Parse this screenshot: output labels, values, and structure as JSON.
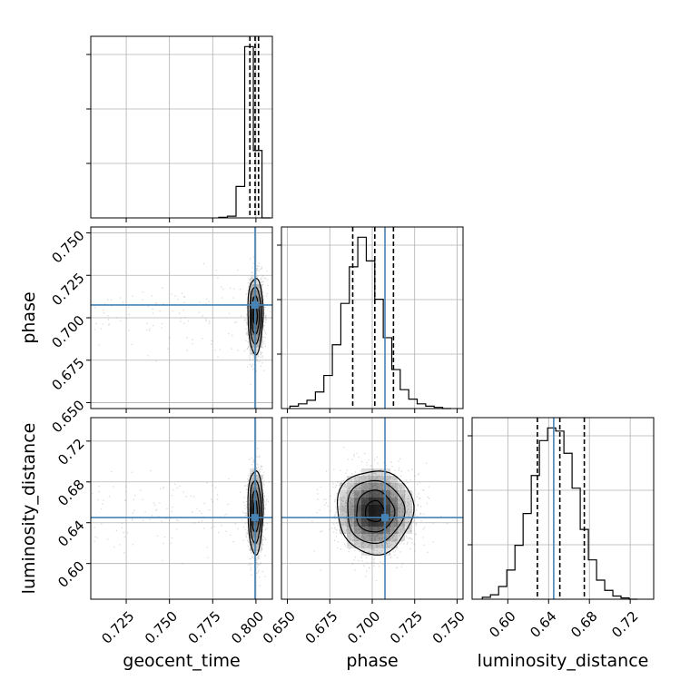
{
  "chart_data": {
    "type": "corner",
    "parameters": [
      "geocent_time",
      "phase",
      "luminosity_distance"
    ],
    "truths": {
      "geocent_time": 0.7995,
      "phase": 0.7075,
      "luminosity_distance": 0.645
    },
    "axes": {
      "geocent_time": {
        "range": [
          0.7045,
          0.8095
        ],
        "ticks": [
          0.725,
          0.75,
          0.775,
          0.8
        ],
        "tick_labels": [
          "0.725",
          "0.750",
          "0.775",
          "0.800"
        ]
      },
      "phase": {
        "range": [
          0.6465,
          0.7535
        ],
        "ticks": [
          0.65,
          0.675,
          0.7,
          0.725,
          0.75
        ],
        "tick_labels": [
          "0.650",
          "0.675",
          "0.700",
          "0.725",
          "0.750"
        ]
      },
      "luminosity_distance": {
        "range": [
          0.565,
          0.743
        ],
        "ticks": [
          0.6,
          0.64,
          0.68,
          0.72
        ],
        "tick_labels": [
          "0.60",
          "0.64",
          "0.68",
          "0.72"
        ]
      }
    },
    "histograms": {
      "geocent_time": {
        "bin_edges": [
          0.7785,
          0.7835,
          0.7885,
          0.7935,
          0.7985,
          0.8035,
          0.8085
        ],
        "counts": [
          1,
          3,
          55,
          300,
          118,
          0
        ],
        "quantiles": [
          0.7965,
          0.7995,
          0.8015
        ]
      },
      "phase": {
        "bin_edges": [
          0.6515,
          0.6565,
          0.6615,
          0.6665,
          0.6715,
          0.6765,
          0.6815,
          0.6865,
          0.6915,
          0.6965,
          0.7015,
          0.7065,
          0.7115,
          0.7165,
          0.7215,
          0.7265,
          0.7315,
          0.7365,
          0.7415,
          0.7465
        ],
        "counts": [
          4,
          8,
          14,
          28,
          56,
          108,
          178,
          240,
          290,
          250,
          185,
          120,
          66,
          32,
          16,
          8,
          4,
          2,
          0
        ],
        "quantiles": [
          0.6885,
          0.7015,
          0.7125
        ]
      },
      "luminosity_distance": {
        "bin_edges": [
          0.575,
          0.583,
          0.591,
          0.599,
          0.607,
          0.615,
          0.623,
          0.631,
          0.639,
          0.647,
          0.655,
          0.663,
          0.671,
          0.679,
          0.687,
          0.695,
          0.703,
          0.711,
          0.719,
          0.727
        ],
        "counts": [
          3,
          7,
          20,
          46,
          85,
          135,
          195,
          250,
          270,
          265,
          230,
          175,
          110,
          62,
          30,
          14,
          5,
          2,
          0
        ],
        "quantiles": [
          0.629,
          0.651,
          0.675
        ]
      }
    },
    "posterior_summary": {
      "geocent_time": {
        "mean": 0.7997,
        "sd": 0.0022
      },
      "phase": {
        "mean": 0.7015,
        "sd": 0.0112
      },
      "luminosity_distance": {
        "mean": 0.651,
        "sd": 0.0205
      }
    },
    "colors": {
      "truth": "#4682b4",
      "hist": "#000000",
      "quantile": "#000000",
      "grid": "#b0b0b0",
      "density": "#000000"
    }
  }
}
